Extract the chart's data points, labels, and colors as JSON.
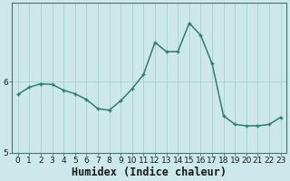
{
  "x": [
    0,
    1,
    2,
    3,
    4,
    5,
    6,
    7,
    8,
    9,
    10,
    11,
    12,
    13,
    14,
    15,
    16,
    17,
    18,
    19,
    20,
    21,
    22,
    23
  ],
  "y": [
    5.82,
    5.92,
    5.97,
    5.96,
    5.88,
    5.83,
    5.75,
    5.62,
    5.6,
    5.73,
    5.9,
    6.1,
    6.55,
    6.42,
    6.42,
    6.82,
    6.65,
    6.25,
    5.52,
    5.4,
    5.38,
    5.38,
    5.4,
    5.5
  ],
  "xlabel": "Humidex (Indice chaleur)",
  "xticks": [
    0,
    1,
    2,
    3,
    4,
    5,
    6,
    7,
    8,
    9,
    10,
    11,
    12,
    13,
    14,
    15,
    16,
    17,
    18,
    19,
    20,
    21,
    22,
    23
  ],
  "yticks": [
    5,
    6
  ],
  "ylim": [
    5.2,
    7.1
  ],
  "xlim": [
    -0.5,
    23.5
  ],
  "line_color": "#2e7d6e",
  "marker": "+",
  "marker_size": 3,
  "bg_color": "#cce8ea",
  "grid_color": "#aacfcf",
  "axis_color": "#4a7070",
  "tick_fontsize": 6.5,
  "xlabel_fontsize": 8.5,
  "line_width": 1.1
}
